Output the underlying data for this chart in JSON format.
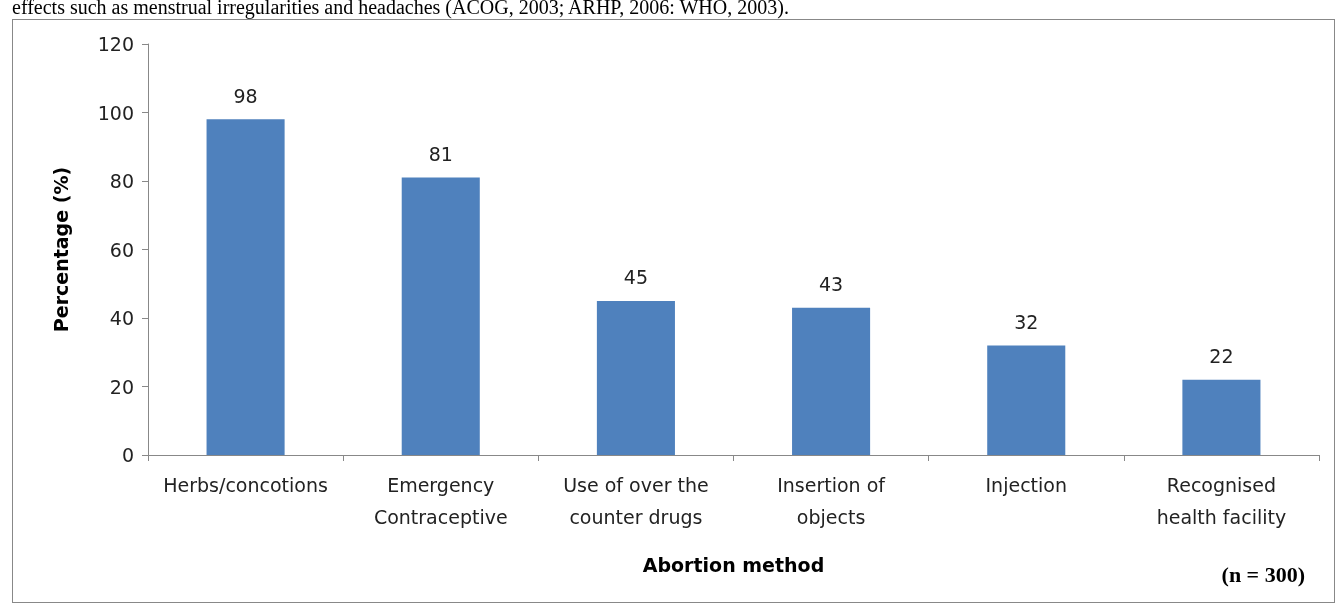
{
  "chart_data": {
    "type": "bar",
    "xlabel": "Abortion method",
    "ylabel": "Percentage (%)",
    "categories": [
      "Herbs/concotions",
      "Emergency\nContraceptive",
      "Use of over the\ncounter drugs",
      "Insertion of\nobjects",
      "Injection",
      "Recognised\nhealth facility"
    ],
    "values": [
      98,
      81,
      45,
      43,
      32,
      22
    ],
    "color": "#4f81bd",
    "data_labels": true,
    "ylim": [
      0,
      120
    ],
    "yticks": [
      0,
      20,
      40,
      60,
      80,
      100,
      120
    ],
    "grid": false,
    "annotations": [
      "effects such as menstrual irregularities and headaches (ACOG, 2003; ARHP, 2006: WHO, 2003).",
      "(n = 300)"
    ]
  }
}
